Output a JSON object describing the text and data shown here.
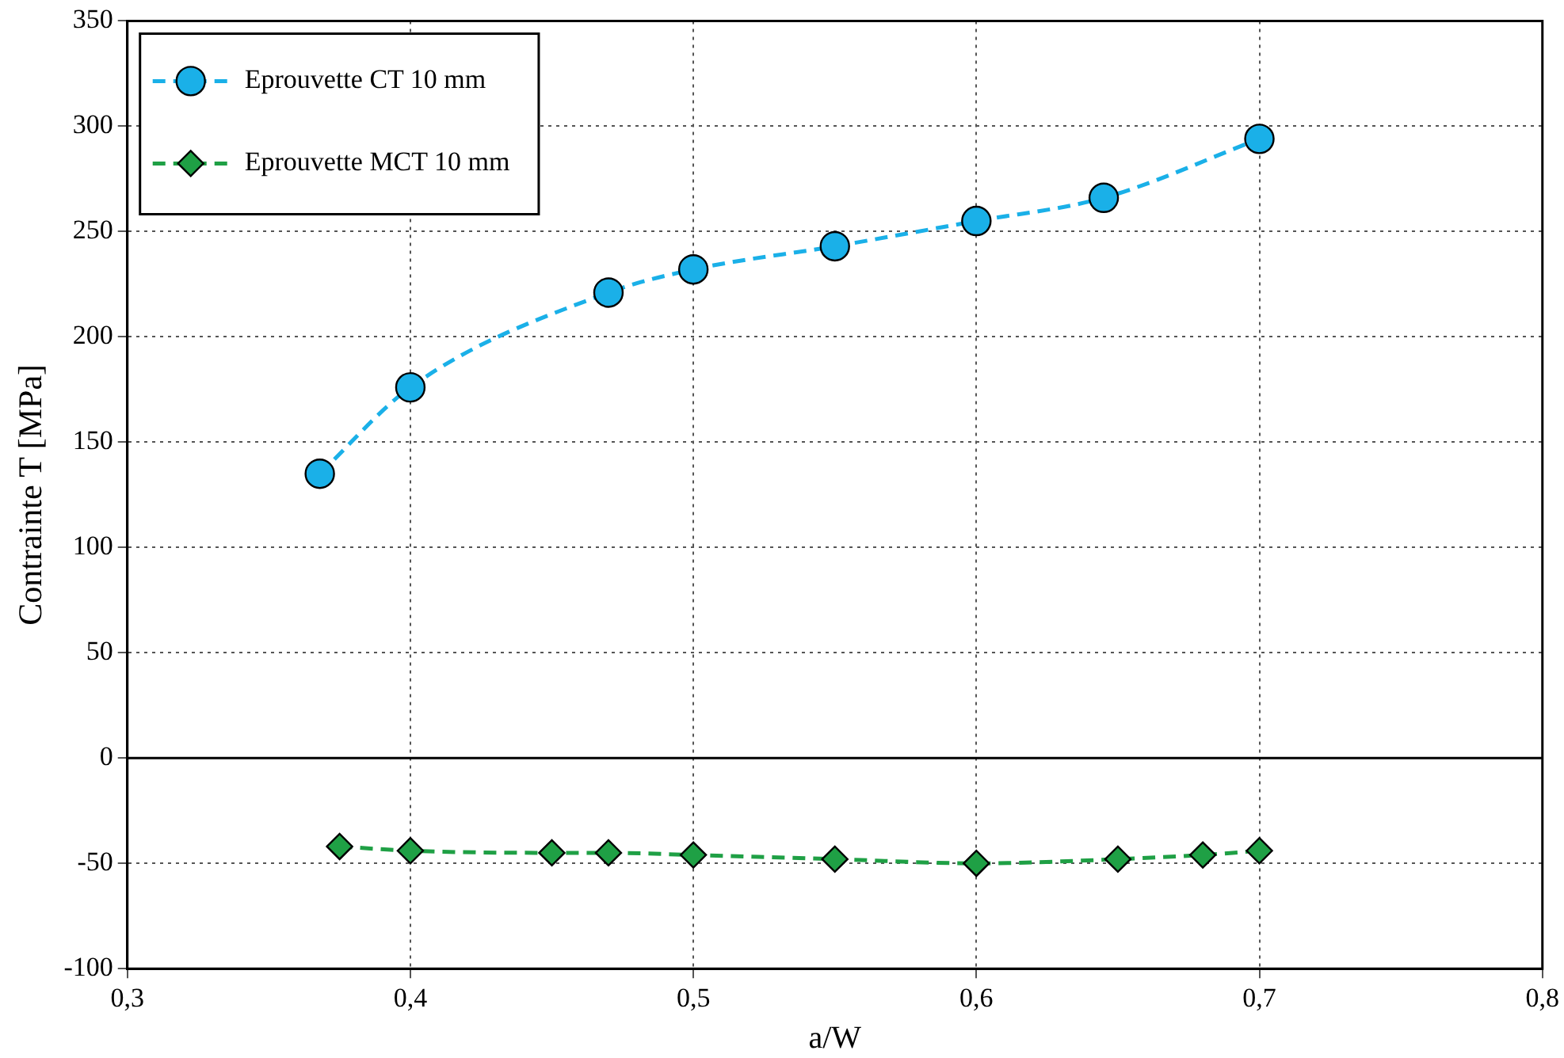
{
  "chart_data": {
    "type": "line",
    "xlabel": "a/W",
    "ylabel": "Contrainte T [MPa]",
    "xlim": [
      0.3,
      0.8
    ],
    "xticks": [
      {
        "value": 0.3,
        "label": "0,3"
      },
      {
        "value": 0.4,
        "label": "0,4"
      },
      {
        "value": 0.5,
        "label": "0,5"
      },
      {
        "value": 0.6,
        "label": "0,6"
      },
      {
        "value": 0.7,
        "label": "0,7"
      },
      {
        "value": 0.8,
        "label": "0,8"
      }
    ],
    "ylim": [
      -100,
      350
    ],
    "yticks": [
      -100,
      -50,
      0,
      50,
      100,
      150,
      200,
      250,
      300,
      350
    ],
    "grid": true,
    "legend": "top left",
    "line_style": "dashed",
    "ref_lines": [
      {
        "axis": "y",
        "value": 0,
        "color": "#000000",
        "line_style": "solid"
      }
    ],
    "series": [
      {
        "name": "Eprouvette CT 10 mm",
        "color": "#1ab0e8",
        "marker": "circle",
        "x": [
          0.368,
          0.4,
          0.47,
          0.5,
          0.55,
          0.6,
          0.645,
          0.7
        ],
        "values": [
          135,
          176,
          221,
          232,
          243,
          255,
          266,
          294
        ]
      },
      {
        "name": "Eprouvette MCT 10 mm",
        "color": "#1fa045",
        "marker": "diamond",
        "x": [
          0.375,
          0.4,
          0.45,
          0.47,
          0.5,
          0.55,
          0.6,
          0.65,
          0.68,
          0.7
        ],
        "values": [
          -42,
          -44,
          -45,
          -45,
          -46,
          -48,
          -50,
          -48,
          -46,
          -44
        ]
      }
    ]
  }
}
